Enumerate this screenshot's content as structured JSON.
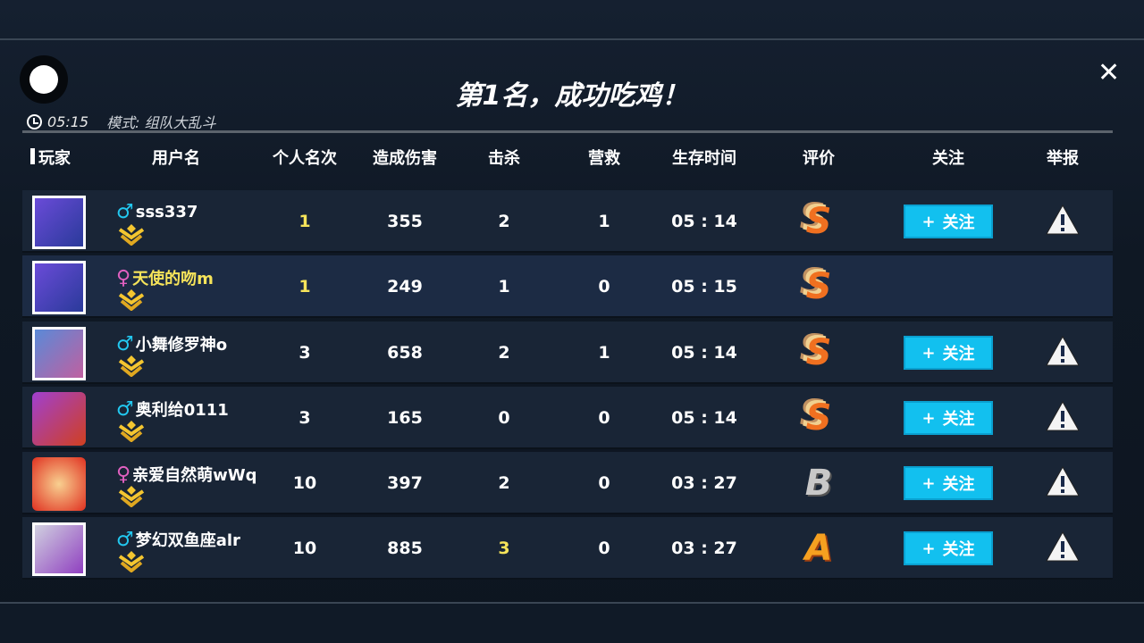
{
  "header": {
    "title": "第1名，成功吃鸡！",
    "time": "05:15",
    "mode": "模式: 组队大乱斗"
  },
  "icons": {
    "close": "close-icon",
    "clock": "clock-icon",
    "follow": "plus-icon",
    "report": "warning-triangle-icon"
  },
  "colors": {
    "follow_button": "#12c0ef",
    "highlight": "#f6e45a",
    "male": "#22c8f0",
    "female": "#e060c0"
  },
  "columns": [
    "玩家",
    "用户名",
    "个人名次",
    "造成伤害",
    "击杀",
    "营救",
    "生存时间",
    "评价",
    "关注",
    "举报"
  ],
  "follow_label": "关注",
  "rows": [
    {
      "username": "sss337",
      "gender": "male",
      "rank": "1",
      "damage": "355",
      "kills": "2",
      "rescues": "1",
      "survival": "05 : 14",
      "grade": "S",
      "followable": true,
      "self": false,
      "rank_hl": true,
      "kills_hl": false
    },
    {
      "username": "天使的吻m",
      "gender": "female",
      "rank": "1",
      "damage": "249",
      "kills": "1",
      "rescues": "0",
      "survival": "05 : 15",
      "grade": "S",
      "followable": false,
      "self": true,
      "rank_hl": true,
      "kills_hl": false
    },
    {
      "username": "小舞修罗神o",
      "gender": "male",
      "rank": "3",
      "damage": "658",
      "kills": "2",
      "rescues": "1",
      "survival": "05 : 14",
      "grade": "S",
      "followable": true,
      "self": false,
      "rank_hl": false,
      "kills_hl": false
    },
    {
      "username": "奥利给0111",
      "gender": "male",
      "rank": "3",
      "damage": "165",
      "kills": "0",
      "rescues": "0",
      "survival": "05 : 14",
      "grade": "S",
      "followable": true,
      "self": false,
      "rank_hl": false,
      "kills_hl": false
    },
    {
      "username": "亲爱自然萌wWq",
      "gender": "female",
      "rank": "10",
      "damage": "397",
      "kills": "2",
      "rescues": "0",
      "survival": "03 : 27",
      "grade": "B",
      "followable": true,
      "self": false,
      "rank_hl": false,
      "kills_hl": false
    },
    {
      "username": "梦幻双鱼座alr",
      "gender": "male",
      "rank": "10",
      "damage": "885",
      "kills": "3",
      "rescues": "0",
      "survival": "03 : 27",
      "grade": "A",
      "followable": true,
      "self": false,
      "rank_hl": false,
      "kills_hl": true
    }
  ]
}
